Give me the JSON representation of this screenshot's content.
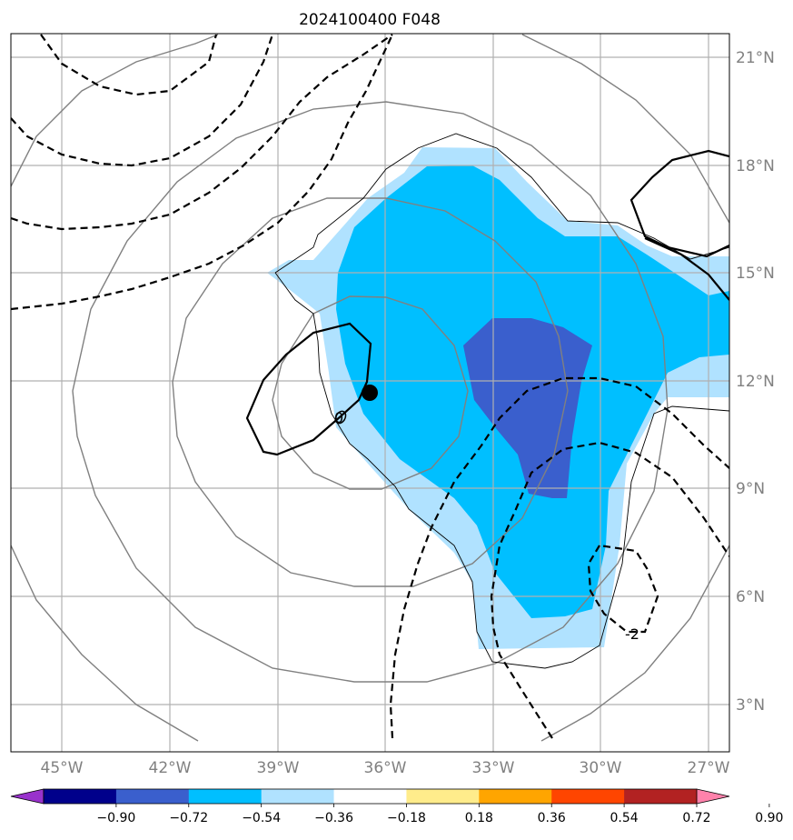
{
  "title": "2024100400 F048",
  "map": {
    "lat_labels": [
      "21°N",
      "18°N",
      "15°N",
      "12°N",
      "9°N",
      "6°N",
      "3°N"
    ],
    "lon_labels": [
      "45°W",
      "42°W",
      "39°W",
      "36°W",
      "33°W",
      "30°W",
      "27°W"
    ],
    "grid": true,
    "contour_labels": [
      "0",
      "-2"
    ],
    "storm_center_marker": "filled-circle"
  },
  "colorbar": {
    "tick_labels": [
      "−0.90",
      "−0.72",
      "−0.54",
      "−0.36",
      "−0.18",
      "0.18",
      "0.36",
      "0.54",
      "0.72",
      "0.90"
    ],
    "colors": [
      "#9932cc",
      "#00008b",
      "#3a5fcd",
      "#00bfff",
      "#b0e2ff",
      "#ffffff",
      "#ffec8b",
      "#ffa500",
      "#ff4500",
      "#b22222",
      "#ff82ab"
    ],
    "extend": "both"
  },
  "colors": {
    "strong_negative": "#3a5fcd",
    "mid_negative": "#00bfff",
    "weak_negative": "#b0e2ff",
    "gray_contour": "#808080",
    "black_contour": "#000000"
  }
}
